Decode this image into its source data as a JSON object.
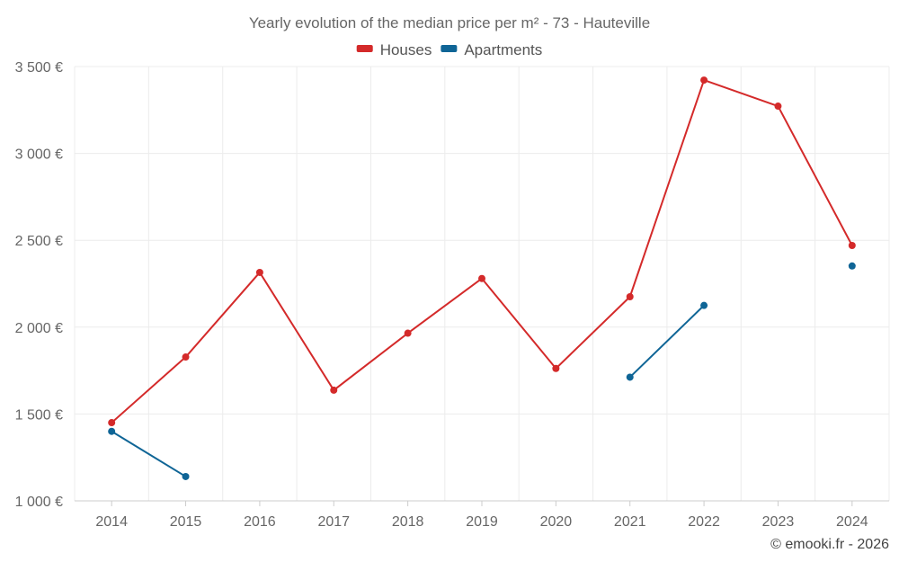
{
  "chart_data": {
    "type": "line",
    "title": "Yearly evolution of the median price per m² - 73 - Hauteville",
    "categories": [
      "2014",
      "2015",
      "2016",
      "2017",
      "2018",
      "2019",
      "2020",
      "2021",
      "2022",
      "2023",
      "2024"
    ],
    "series": [
      {
        "name": "Houses",
        "color": "#d42a2a",
        "values": [
          1450,
          1828,
          2315,
          1637,
          1965,
          2280,
          1762,
          2175,
          3422,
          3272,
          2470
        ]
      },
      {
        "name": "Apartments",
        "color": "#0f6596",
        "values": [
          1400,
          1140,
          null,
          null,
          null,
          null,
          null,
          1712,
          2125,
          null,
          2352
        ]
      }
    ],
    "ylim": [
      1000,
      3500
    ],
    "yticks": [
      1000,
      1500,
      2000,
      2500,
      3000,
      3500
    ],
    "ytick_labels": [
      "1 000 €",
      "1 500 €",
      "2 000 €",
      "2 500 €",
      "3 000 €",
      "3 500 €"
    ],
    "xlabel": "",
    "ylabel": "",
    "grid": true,
    "legend_position": "top-center"
  },
  "credit": "© emooki.fr - 2026"
}
